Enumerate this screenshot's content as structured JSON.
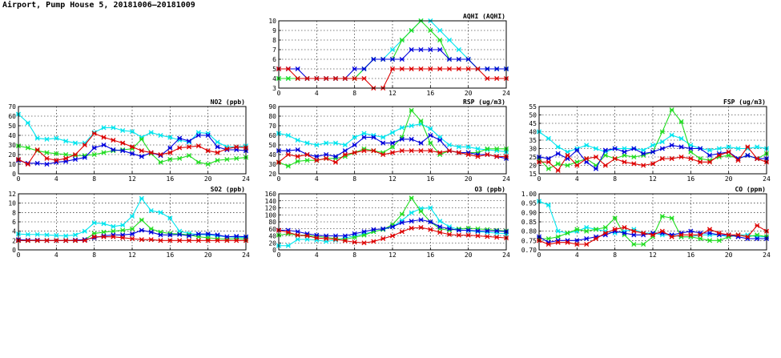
{
  "page_title": "Airport, Pump House 5, 20181006—20181009",
  "colors": {
    "cyan": "#00e5ee",
    "green": "#22dd22",
    "blue": "#0000dd",
    "red": "#dd0000"
  },
  "chart_data": [
    {
      "type": "line",
      "title": "AQHI (AQHI)",
      "xticks": [
        "0",
        "4",
        "8",
        "12",
        "16",
        "20",
        "24"
      ],
      "xlim": [
        0,
        24
      ],
      "ylim": [
        3,
        10
      ],
      "yticks": [
        "3",
        "4",
        "5",
        "6",
        "7",
        "8",
        "9",
        "10"
      ],
      "grid": true,
      "x": [
        0,
        1,
        2,
        3,
        4,
        5,
        6,
        7,
        8,
        9,
        10,
        11,
        12,
        13,
        14,
        15,
        16,
        17,
        18,
        19,
        20,
        21,
        22,
        23,
        24
      ],
      "series": [
        {
          "color": "cyan",
          "values": [
            4,
            4,
            4,
            4,
            4,
            4,
            4,
            4,
            4,
            5,
            6,
            6,
            7,
            8,
            9,
            10,
            10,
            9,
            8,
            7,
            6,
            5,
            5,
            5,
            5
          ]
        },
        {
          "color": "green",
          "values": [
            4,
            4,
            4,
            4,
            4,
            4,
            4,
            4,
            4,
            5,
            6,
            6,
            6,
            8,
            9,
            10,
            9,
            8,
            6,
            6,
            6,
            5,
            5,
            5,
            5
          ]
        },
        {
          "color": "blue",
          "values": [
            5,
            5,
            5,
            4,
            4,
            4,
            4,
            4,
            5,
            5,
            6,
            6,
            6,
            6,
            7,
            7,
            7,
            7,
            6,
            6,
            6,
            5,
            5,
            5,
            5
          ]
        },
        {
          "color": "red",
          "values": [
            5,
            5,
            4,
            4,
            4,
            4,
            4,
            4,
            4,
            4,
            3,
            3,
            5,
            5,
            5,
            5,
            5,
            5,
            5,
            5,
            5,
            5,
            4,
            4,
            4
          ]
        }
      ]
    },
    {
      "type": "line",
      "title": "NO2 (ppb)",
      "xticks": [
        "0",
        "4",
        "8",
        "12",
        "16",
        "20",
        "24"
      ],
      "xlim": [
        0,
        24
      ],
      "ylim": [
        0,
        70
      ],
      "yticks": [
        "0",
        "10",
        "20",
        "30",
        "40",
        "50",
        "60",
        "70"
      ],
      "grid": true,
      "x": [
        0,
        1,
        2,
        3,
        4,
        5,
        6,
        7,
        8,
        9,
        10,
        11,
        12,
        13,
        14,
        15,
        16,
        17,
        18,
        19,
        20,
        21,
        22,
        23,
        24
      ],
      "series": [
        {
          "color": "cyan",
          "values": [
            62,
            53,
            37,
            36,
            37,
            34,
            32,
            32,
            43,
            48,
            48,
            45,
            44,
            38,
            43,
            40,
            38,
            35,
            33,
            43,
            42,
            33,
            28,
            28,
            29
          ]
        },
        {
          "color": "green",
          "values": [
            29,
            27,
            24,
            22,
            21,
            20,
            19,
            19,
            20,
            22,
            24,
            25,
            26,
            36,
            21,
            12,
            15,
            16,
            19,
            12,
            10,
            14,
            15,
            16,
            17
          ]
        },
        {
          "color": "blue",
          "values": [
            14,
            11,
            11,
            10,
            12,
            13,
            15,
            17,
            27,
            30,
            25,
            24,
            21,
            18,
            22,
            19,
            27,
            37,
            34,
            40,
            40,
            28,
            25,
            25,
            24
          ]
        },
        {
          "color": "red",
          "values": [
            15,
            10,
            25,
            16,
            14,
            16,
            20,
            30,
            42,
            38,
            35,
            32,
            28,
            24,
            22,
            20,
            22,
            27,
            28,
            29,
            24,
            22,
            26,
            28,
            27
          ]
        }
      ]
    },
    {
      "type": "line",
      "title": "RSP (ug/m3)",
      "xticks": [
        "0",
        "4",
        "8",
        "12",
        "16",
        "20",
        "24"
      ],
      "xlim": [
        0,
        24
      ],
      "ylim": [
        20,
        90
      ],
      "yticks": [
        "20",
        "30",
        "40",
        "50",
        "60",
        "70",
        "80",
        "90"
      ],
      "grid": true,
      "x": [
        0,
        1,
        2,
        3,
        4,
        5,
        6,
        7,
        8,
        9,
        10,
        11,
        12,
        13,
        14,
        15,
        16,
        17,
        18,
        19,
        20,
        21,
        22,
        23,
        24
      ],
      "series": [
        {
          "color": "cyan",
          "values": [
            62,
            60,
            55,
            52,
            50,
            52,
            52,
            50,
            58,
            62,
            60,
            58,
            63,
            68,
            70,
            72,
            67,
            58,
            50,
            48,
            48,
            46,
            45,
            44,
            43
          ]
        },
        {
          "color": "green",
          "values": [
            32,
            28,
            33,
            34,
            34,
            36,
            36,
            38,
            42,
            46,
            44,
            42,
            48,
            58,
            86,
            75,
            52,
            40,
            44,
            42,
            42,
            42,
            46,
            46,
            46
          ]
        },
        {
          "color": "blue",
          "values": [
            44,
            44,
            45,
            40,
            38,
            40,
            38,
            44,
            50,
            58,
            58,
            52,
            52,
            56,
            56,
            52,
            60,
            55,
            44,
            42,
            42,
            40,
            40,
            38,
            36
          ]
        },
        {
          "color": "red",
          "values": [
            32,
            40,
            38,
            40,
            34,
            36,
            32,
            40,
            42,
            44,
            44,
            40,
            42,
            44,
            44,
            44,
            44,
            42,
            44,
            42,
            40,
            38,
            40,
            38,
            38
          ]
        }
      ]
    },
    {
      "type": "line",
      "title": "FSP (ug/m3)",
      "xticks": [
        "0",
        "4",
        "8",
        "12",
        "16",
        "20",
        "24"
      ],
      "xlim": [
        0,
        24
      ],
      "ylim": [
        15,
        55
      ],
      "yticks": [
        "15",
        "20",
        "25",
        "30",
        "35",
        "40",
        "45",
        "50",
        "55"
      ],
      "grid": true,
      "x": [
        0,
        1,
        2,
        3,
        4,
        5,
        6,
        7,
        8,
        9,
        10,
        11,
        12,
        13,
        14,
        15,
        16,
        17,
        18,
        19,
        20,
        21,
        22,
        23,
        24
      ],
      "series": [
        {
          "color": "cyan",
          "values": [
            40,
            36,
            31,
            28,
            30,
            32,
            30,
            28,
            30,
            30,
            30,
            29,
            32,
            34,
            38,
            36,
            32,
            30,
            29,
            30,
            31,
            30,
            30,
            31,
            30
          ]
        },
        {
          "color": "green",
          "values": [
            24,
            18,
            21,
            20,
            22,
            24,
            20,
            26,
            24,
            26,
            25,
            26,
            28,
            40,
            53,
            46,
            28,
            24,
            23,
            25,
            26,
            24,
            26,
            24,
            27
          ]
        },
        {
          "color": "blue",
          "values": [
            25,
            24,
            27,
            24,
            29,
            22,
            18,
            29,
            30,
            28,
            30,
            27,
            28,
            30,
            32,
            31,
            30,
            30,
            26,
            27,
            28,
            24,
            26,
            24,
            24
          ]
        },
        {
          "color": "red",
          "values": [
            22,
            22,
            17,
            26,
            20,
            24,
            25,
            20,
            24,
            22,
            21,
            20,
            21,
            24,
            24,
            25,
            24,
            22,
            22,
            26,
            28,
            23,
            31,
            24,
            22
          ]
        }
      ]
    },
    {
      "type": "line",
      "title": "SO2 (ppb)",
      "xticks": [
        "0",
        "4",
        "8",
        "12",
        "16",
        "20",
        "24"
      ],
      "xlim": [
        0,
        24
      ],
      "ylim": [
        0,
        12
      ],
      "yticks": [
        "0",
        "2",
        "4",
        "6",
        "8",
        "10",
        "12"
      ],
      "grid": true,
      "x": [
        0,
        1,
        2,
        3,
        4,
        5,
        6,
        7,
        8,
        9,
        10,
        11,
        12,
        13,
        14,
        15,
        16,
        17,
        18,
        19,
        20,
        21,
        22,
        23,
        24
      ],
      "series": [
        {
          "color": "cyan",
          "values": [
            3.4,
            3.3,
            3.3,
            3.2,
            3.1,
            3.0,
            3.2,
            4.0,
            5.8,
            5.6,
            5.0,
            5.3,
            7.2,
            11.0,
            8.4,
            8.0,
            6.8,
            4.0,
            3.5,
            3.3,
            3.2,
            3.0,
            2.8,
            2.7,
            2.6
          ]
        },
        {
          "color": "green",
          "values": [
            2.0,
            2.0,
            2.0,
            2.0,
            2.0,
            2.0,
            2.0,
            2.2,
            3.5,
            3.8,
            4.0,
            4.2,
            4.5,
            6.4,
            4.5,
            3.8,
            3.5,
            3.4,
            3.2,
            2.8,
            2.6,
            2.4,
            2.3,
            2.4,
            2.3
          ]
        },
        {
          "color": "blue",
          "values": [
            2.2,
            2.1,
            2.1,
            2.0,
            2.0,
            2.0,
            2.1,
            2.2,
            2.6,
            3.0,
            3.2,
            3.2,
            3.4,
            4.2,
            3.8,
            3.2,
            3.2,
            3.3,
            3.0,
            3.4,
            3.4,
            3.2,
            2.8,
            2.9,
            2.8
          ]
        },
        {
          "color": "red",
          "values": [
            2.0,
            2.0,
            2.0,
            2.0,
            2.0,
            2.0,
            2.0,
            2.0,
            2.8,
            2.8,
            2.8,
            2.6,
            2.4,
            2.2,
            2.2,
            2.0,
            2.0,
            2.0,
            2.0,
            2.0,
            2.0,
            2.0,
            2.0,
            2.0,
            2.0
          ]
        }
      ]
    },
    {
      "type": "line",
      "title": "O3 (ppb)",
      "xticks": [
        "0",
        "4",
        "8",
        "12",
        "16",
        "20",
        "24"
      ],
      "xlim": [
        0,
        24
      ],
      "ylim": [
        0,
        160
      ],
      "yticks": [
        "0",
        "20",
        "40",
        "60",
        "80",
        "100",
        "120",
        "140",
        "160"
      ],
      "grid": true,
      "x": [
        0,
        1,
        2,
        3,
        4,
        5,
        6,
        7,
        8,
        9,
        10,
        11,
        12,
        13,
        14,
        15,
        16,
        17,
        18,
        19,
        20,
        21,
        22,
        23,
        24
      ],
      "series": [
        {
          "color": "cyan",
          "values": [
            12,
            12,
            30,
            30,
            28,
            24,
            28,
            34,
            40,
            46,
            52,
            58,
            66,
            84,
            106,
            118,
            120,
            82,
            66,
            58,
            55,
            52,
            50,
            48,
            46
          ]
        },
        {
          "color": "green",
          "values": [
            42,
            46,
            42,
            42,
            38,
            36,
            32,
            30,
            36,
            42,
            52,
            58,
            72,
            102,
            148,
            110,
            80,
            60,
            56,
            60,
            62,
            60,
            58,
            56,
            54
          ]
        },
        {
          "color": "blue",
          "values": [
            56,
            56,
            52,
            46,
            42,
            40,
            40,
            40,
            46,
            52,
            58,
            60,
            66,
            78,
            82,
            86,
            80,
            66,
            60,
            56,
            56,
            54,
            54,
            54,
            52
          ]
        },
        {
          "color": "red",
          "values": [
            56,
            50,
            42,
            40,
            34,
            32,
            30,
            26,
            22,
            20,
            24,
            32,
            40,
            52,
            62,
            64,
            58,
            50,
            44,
            42,
            42,
            40,
            38,
            36,
            34
          ]
        }
      ]
    },
    {
      "type": "line",
      "title": "CO (ppm)",
      "xticks": [
        "0",
        "4",
        "8",
        "12",
        "16",
        "20",
        "24"
      ],
      "xlim": [
        0,
        24
      ],
      "ylim": [
        0.7,
        1.0
      ],
      "yticks": [
        "0.70",
        "0.75",
        "0.80",
        "0.85",
        "0.90",
        "0.95",
        "1.00"
      ],
      "grid": true,
      "x": [
        0,
        1,
        2,
        3,
        4,
        5,
        6,
        7,
        8,
        9,
        10,
        11,
        12,
        13,
        14,
        15,
        16,
        17,
        18,
        19,
        20,
        21,
        22,
        23,
        24
      ],
      "series": [
        {
          "color": "cyan",
          "values": [
            0.96,
            0.94,
            0.8,
            0.79,
            0.8,
            0.82,
            0.81,
            0.8,
            0.79,
            0.8,
            0.81,
            0.79,
            0.79,
            0.78,
            0.78,
            0.77,
            0.77,
            0.78,
            0.78,
            0.78,
            0.77,
            0.78,
            0.78,
            0.77,
            0.77
          ]
        },
        {
          "color": "green",
          "values": [
            0.76,
            0.76,
            0.77,
            0.79,
            0.81,
            0.8,
            0.81,
            0.82,
            0.87,
            0.78,
            0.73,
            0.73,
            0.77,
            0.88,
            0.87,
            0.77,
            0.77,
            0.76,
            0.75,
            0.75,
            0.77,
            0.78,
            0.77,
            0.78,
            0.77
          ]
        },
        {
          "color": "blue",
          "values": [
            0.77,
            0.74,
            0.75,
            0.75,
            0.75,
            0.76,
            0.77,
            0.78,
            0.8,
            0.79,
            0.78,
            0.78,
            0.79,
            0.79,
            0.78,
            0.79,
            0.8,
            0.79,
            0.79,
            0.78,
            0.78,
            0.77,
            0.76,
            0.76,
            0.76
          ]
        },
        {
          "color": "red",
          "values": [
            0.75,
            0.73,
            0.74,
            0.74,
            0.73,
            0.73,
            0.76,
            0.79,
            0.81,
            0.82,
            0.8,
            0.79,
            0.78,
            0.8,
            0.77,
            0.78,
            0.78,
            0.78,
            0.81,
            0.79,
            0.78,
            0.78,
            0.77,
            0.83,
            0.8
          ]
        }
      ]
    }
  ]
}
